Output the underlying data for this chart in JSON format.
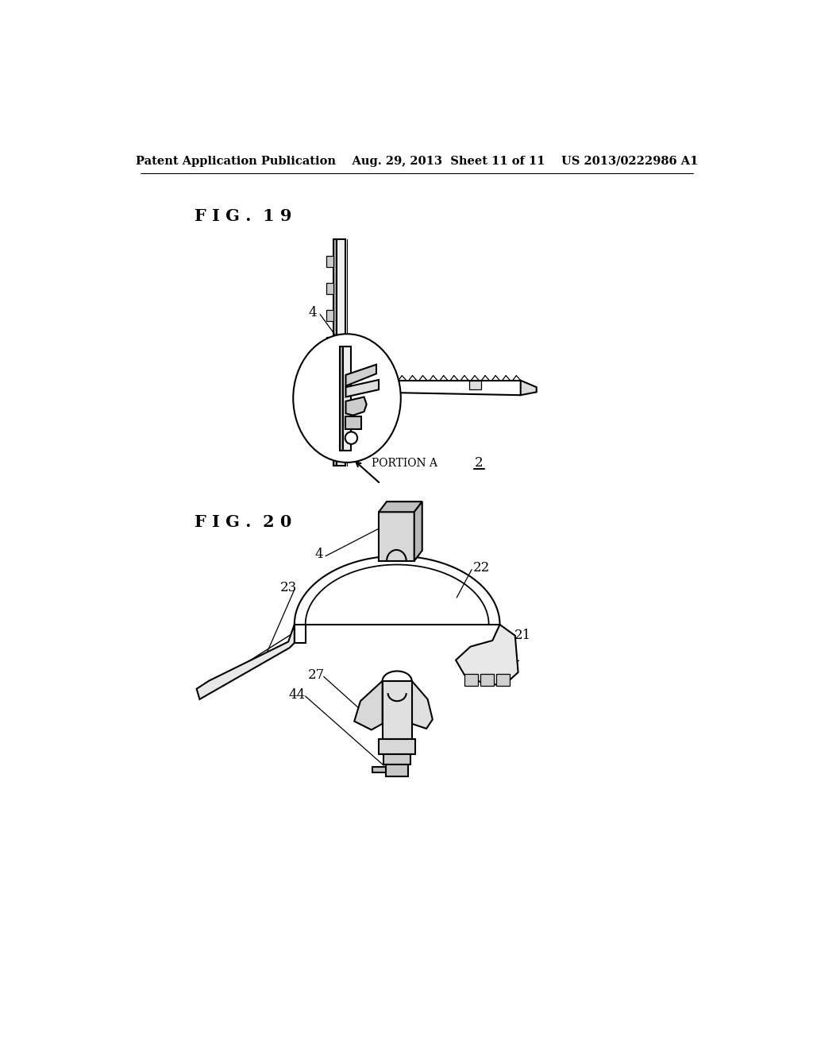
{
  "bg_color": "#ffffff",
  "line_color": "#000000",
  "header_text": "Patent Application Publication    Aug. 29, 2013  Sheet 11 of 11    US 2013/0222986 A1",
  "fig19_label": "F I G .  1 9",
  "fig20_label": "F I G .  2 0"
}
